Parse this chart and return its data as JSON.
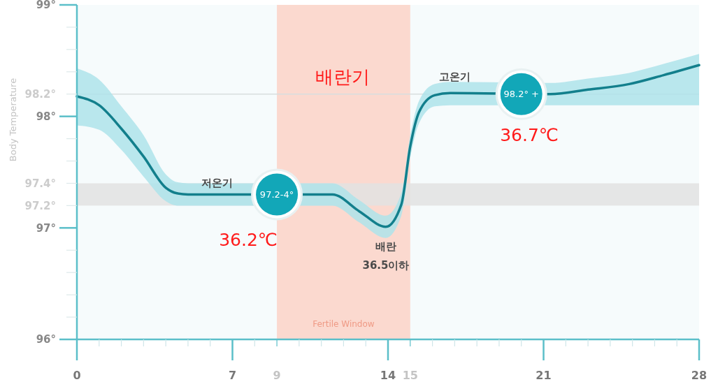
{
  "chart_data": {
    "type": "line",
    "ylabel": "Body Temperature",
    "xlim": [
      0,
      28
    ],
    "ylim": [
      96,
      99
    ],
    "xticks": [
      0,
      {
        "value": 1,
        "label": null
      },
      {
        "value": 2,
        "label": null
      },
      {
        "value": 3,
        "label": null
      },
      {
        "value": 4,
        "label": null
      },
      {
        "value": 5,
        "label": null
      },
      {
        "value": 6,
        "label": null
      },
      7,
      {
        "value": 8,
        "label": null
      },
      9,
      {
        "value": 10,
        "label": null
      },
      {
        "value": 11,
        "label": null
      },
      {
        "value": 12,
        "label": null
      },
      {
        "value": 13,
        "label": null
      },
      14,
      15,
      {
        "value": 16,
        "label": null
      },
      {
        "value": 17,
        "label": null
      },
      {
        "value": 18,
        "label": null
      },
      {
        "value": 19,
        "label": null
      },
      {
        "value": 20,
        "label": null
      },
      21,
      {
        "value": 22,
        "label": null
      },
      {
        "value": 23,
        "label": null
      },
      {
        "value": 24,
        "label": null
      },
      {
        "value": 25,
        "label": null
      },
      {
        "value": 26,
        "label": null
      },
      {
        "value": 27,
        "label": null
      },
      28
    ],
    "yticks": [
      {
        "value": 96,
        "label": "96°"
      },
      {
        "value": 96.2,
        "label": null
      },
      {
        "value": 96.4,
        "label": null
      },
      {
        "value": 96.6,
        "label": null
      },
      {
        "value": 96.8,
        "label": null
      },
      {
        "value": 97,
        "label": "97°"
      },
      {
        "value": 97.2,
        "label": "97.2°"
      },
      {
        "value": 97.4,
        "label": "97.4°"
      },
      {
        "value": 97.6,
        "label": null
      },
      {
        "value": 97.8,
        "label": null
      },
      {
        "value": 98,
        "label": "98°"
      },
      {
        "value": 98.2,
        "label": "98.2°"
      },
      {
        "value": 98.4,
        "label": null
      },
      {
        "value": 98.6,
        "label": null
      },
      {
        "value": 98.8,
        "label": null
      },
      {
        "value": 99,
        "label": "99°"
      }
    ],
    "grid": false,
    "marker": "none",
    "line_style": "solid",
    "bands": [
      {
        "axis": "x",
        "from": 9,
        "to": 15,
        "label": "Fertile Window",
        "color": "#fbd9cf"
      },
      {
        "axis": "y",
        "from": 97.2,
        "to": 97.4,
        "label": null,
        "color": "#e2e2e2"
      }
    ],
    "ref_lines": [
      {
        "axis": "y",
        "value": 98.2,
        "label": null,
        "color": "#d8dede"
      }
    ],
    "series": [
      {
        "color": "#127f8c",
        "x": [
          0,
          1,
          2,
          3,
          4,
          4.5,
          5,
          7,
          11.5,
          12.7,
          13.9,
          14.6,
          15,
          15.4,
          16.1,
          16.8,
          21.3,
          23,
          24.85,
          26.4,
          28
        ],
        "values": [
          98.18,
          98.1,
          97.89,
          97.64,
          97.36,
          97.31,
          97.3,
          97.3,
          97.3,
          97.15,
          97.01,
          97.21,
          97.73,
          98.04,
          98.19,
          98.21,
          98.2,
          98.24,
          98.29,
          98.37,
          98.46
        ],
        "lower": [
          97.92,
          97.88,
          97.7,
          97.46,
          97.24,
          97.2,
          97.2,
          97.2,
          97.2,
          97.05,
          96.91,
          97.11,
          97.63,
          97.94,
          98.09,
          98.1,
          98.1,
          98.1,
          98.1,
          98.1,
          98.1
        ],
        "upper": [
          98.43,
          98.33,
          98.09,
          97.83,
          97.48,
          97.41,
          97.4,
          97.4,
          97.4,
          97.25,
          97.11,
          97.31,
          97.83,
          98.14,
          98.29,
          98.31,
          98.3,
          98.34,
          98.39,
          98.47,
          98.56
        ]
      }
    ],
    "annotations": [
      "배란기",
      "저온기",
      {
        "text": "97.2-4°",
        "x": 9,
        "y": 97.3
      },
      "36.2℃",
      "배란",
      "36.5이하",
      "고온기",
      {
        "text": "98.2° +",
        "x": 20,
        "y": 98.2
      },
      "36.7℃"
    ]
  }
}
